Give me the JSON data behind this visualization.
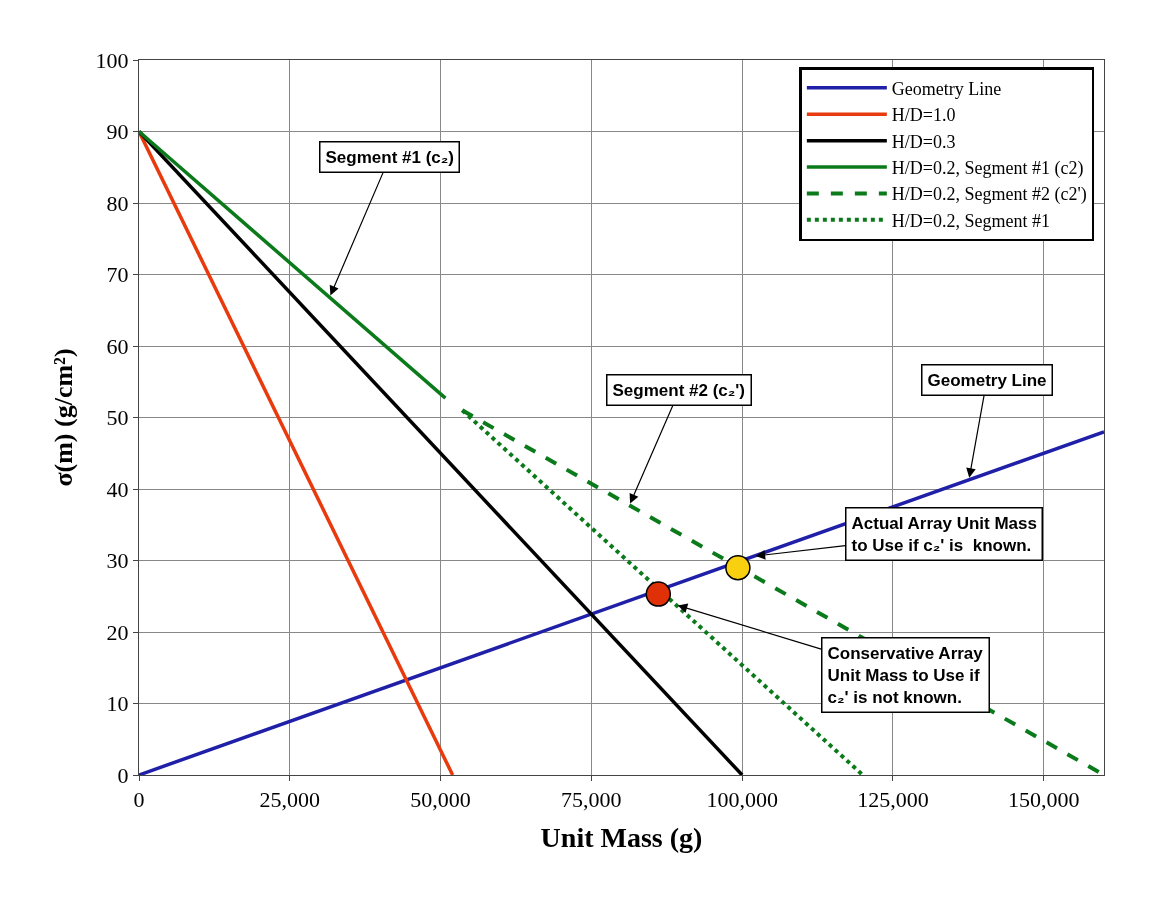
{
  "chart_data": {
    "type": "line",
    "xlabel": "Unit Mass (g)",
    "ylabel": "σ(m) (g/cm²)",
    "xlim": [
      0,
      160000
    ],
    "ylim": [
      0,
      100
    ],
    "xticks": [
      {
        "value": 0,
        "label": "0"
      },
      {
        "value": 25000,
        "label": "25,000"
      },
      {
        "value": 50000,
        "label": "50,000"
      },
      {
        "value": 75000,
        "label": "75,000"
      },
      {
        "value": 100000,
        "label": "100,000"
      },
      {
        "value": 125000,
        "label": "125,000"
      },
      {
        "value": 150000,
        "label": "150,000"
      }
    ],
    "yticks": [
      0,
      10,
      20,
      30,
      40,
      50,
      60,
      70,
      80,
      90,
      100
    ],
    "grid": true,
    "legend": "top right",
    "series": [
      {
        "name": "Geometry Line",
        "color": "#1f1fa8",
        "x": [
          0,
          160000
        ],
        "values": [
          0,
          48
        ],
        "line_style": "solid",
        "marker": "none"
      },
      {
        "name": "H/D=1.0",
        "color": "#e83a0c",
        "x": [
          0,
          52000
        ],
        "values": [
          90,
          0
        ],
        "line_style": "solid",
        "marker": "none"
      },
      {
        "name": "H/D=0.3",
        "color": "#000000",
        "x": [
          0,
          100000
        ],
        "values": [
          90,
          0
        ],
        "line_style": "solid",
        "marker": "none"
      },
      {
        "name": "H/D=0.2, Segment #1 (c2)",
        "color": "#0a7a1a",
        "x": [
          0,
          50800
        ],
        "values": [
          90,
          52.7
        ],
        "line_style": "solid",
        "marker": "none"
      },
      {
        "name": "H/D=0.2, Segment #2 (c2')",
        "color": "#0a7a1a",
        "x": [
          53600,
          160000
        ],
        "values": [
          51,
          0
        ],
        "line_style": "dashed",
        "marker": "none"
      },
      {
        "name": "H/D=0.2, Segment #1",
        "color": "#0a7a1a",
        "x": [
          53600,
          120000
        ],
        "values": [
          51,
          0
        ],
        "line_style": "dotted",
        "marker": "none"
      },
      {
        "type": "scatter",
        "color": "#e03008",
        "x": [
          86100
        ],
        "values": [
          25.3
        ],
        "marker": "circle"
      },
      {
        "type": "scatter",
        "color": "#f8d010",
        "x": [
          99300
        ],
        "values": [
          29.0
        ],
        "marker": "circle"
      }
    ],
    "annotations": [
      {
        "text": "Segment #1 (c₂)",
        "x": 31600,
        "y": 66.8
      },
      {
        "text": "Segment #2 (c₂')",
        "x": 81300,
        "y": 37.7
      },
      {
        "text": "Geometry Line",
        "x": 137600,
        "y": 41.3
      },
      {
        "text": "Actual Array Unit Mass\nto Use if c₂' is  known.",
        "x": 101900,
        "y": 30.6
      },
      {
        "text": "Conservative Array\nUnit Mass to Use if\nc₂' is not known.",
        "x": 89000,
        "y": 23.8
      }
    ]
  }
}
